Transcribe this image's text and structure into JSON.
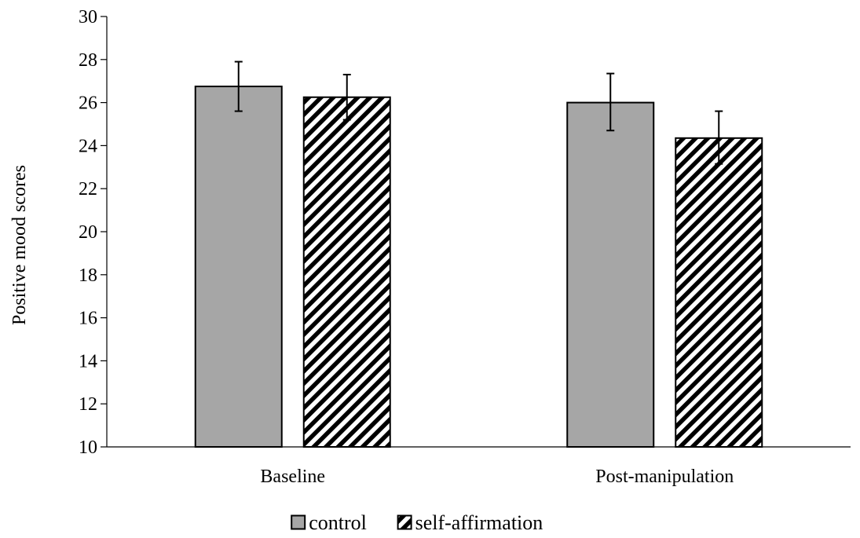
{
  "chart_data": {
    "type": "bar",
    "title": "",
    "xlabel": "",
    "ylabel": "Positive mood scores",
    "ylim": [
      10,
      30
    ],
    "yticks": [
      10,
      12,
      14,
      16,
      18,
      20,
      22,
      24,
      26,
      28,
      30
    ],
    "categories": [
      "Baseline",
      "Post-manipulation"
    ],
    "series": [
      {
        "name": "control",
        "values": [
          26.75,
          26.0
        ],
        "error_low": [
          25.6,
          24.7
        ],
        "error_high": [
          27.9,
          27.35
        ],
        "fill": "#a6a6a6",
        "pattern": "solid"
      },
      {
        "name": "self-affirmation",
        "values": [
          26.25,
          24.35
        ],
        "error_low": [
          25.2,
          23.15
        ],
        "error_high": [
          27.3,
          25.6
        ],
        "fill": "#ffffff",
        "pattern": "diagonal-stripes"
      }
    ],
    "grid": false,
    "legend_position": "bottom",
    "colors": {
      "axis": "#000000",
      "control_fill": "#a6a6a6",
      "stripe": "#000000"
    }
  }
}
